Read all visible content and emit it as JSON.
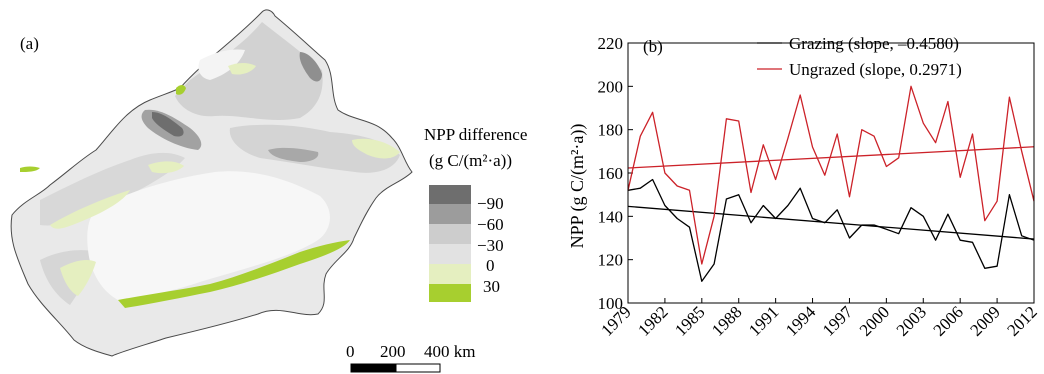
{
  "panel_a": {
    "label": "(a)",
    "legend_title_1": "NPP difference",
    "legend_title_2": "(g C/(m²·a))",
    "legend": [
      {
        "label": "−90",
        "color": "#6e6e6e"
      },
      {
        "label": "−60",
        "color": "#9c9c9c"
      },
      {
        "label": "−30",
        "color": "#cdcdcd"
      },
      {
        "label": "0",
        "color": "#e2e2e2"
      },
      {
        "label": "30",
        "color": "#e5efc0"
      }
    ],
    "legend_extra_color": "#a7cf2f",
    "scalebar": {
      "labels": [
        "0",
        "200",
        "400 km"
      ]
    }
  },
  "chart_data": {
    "type": "line",
    "panel_label": "(b)",
    "ylabel": "NPP (g C/(m²·a))",
    "ylim": [
      100,
      220
    ],
    "yticks": [
      100,
      120,
      140,
      160,
      180,
      200,
      220
    ],
    "xlim": [
      1979,
      2012
    ],
    "xticks": [
      1979,
      1982,
      1985,
      1988,
      1991,
      1994,
      1997,
      2000,
      2003,
      2006,
      2009,
      2012
    ],
    "x": [
      1979,
      1980,
      1981,
      1982,
      1983,
      1984,
      1985,
      1986,
      1987,
      1988,
      1989,
      1990,
      1991,
      1992,
      1993,
      1994,
      1995,
      1996,
      1997,
      1998,
      1999,
      2000,
      2001,
      2002,
      2003,
      2004,
      2005,
      2006,
      2007,
      2008,
      2009,
      2010,
      2011,
      2012
    ],
    "series": [
      {
        "name": "Grazing (slope, –0.4580)",
        "color": "#000000",
        "values": [
          152,
          153,
          157,
          145,
          139,
          135,
          110,
          118,
          148,
          150,
          137,
          145,
          139,
          145,
          153,
          139,
          137,
          143,
          130,
          136,
          136,
          134,
          132,
          144,
          140,
          129,
          141,
          129,
          128,
          116,
          117,
          150,
          131,
          129
        ],
        "trend": [
          144.6,
          129.5
        ]
      },
      {
        "name": "Ungrazed (slope, 0.2971)",
        "color": "#cc2229",
        "values": [
          152,
          177,
          188,
          160,
          154,
          152,
          118,
          140,
          185,
          184,
          151,
          173,
          157,
          176,
          196,
          172,
          159,
          178,
          149,
          180,
          177,
          163,
          167,
          200,
          183,
          174,
          193,
          158,
          178,
          138,
          147,
          195,
          170,
          147
        ],
        "trend": [
          162.3,
          172.1
        ]
      }
    ]
  }
}
